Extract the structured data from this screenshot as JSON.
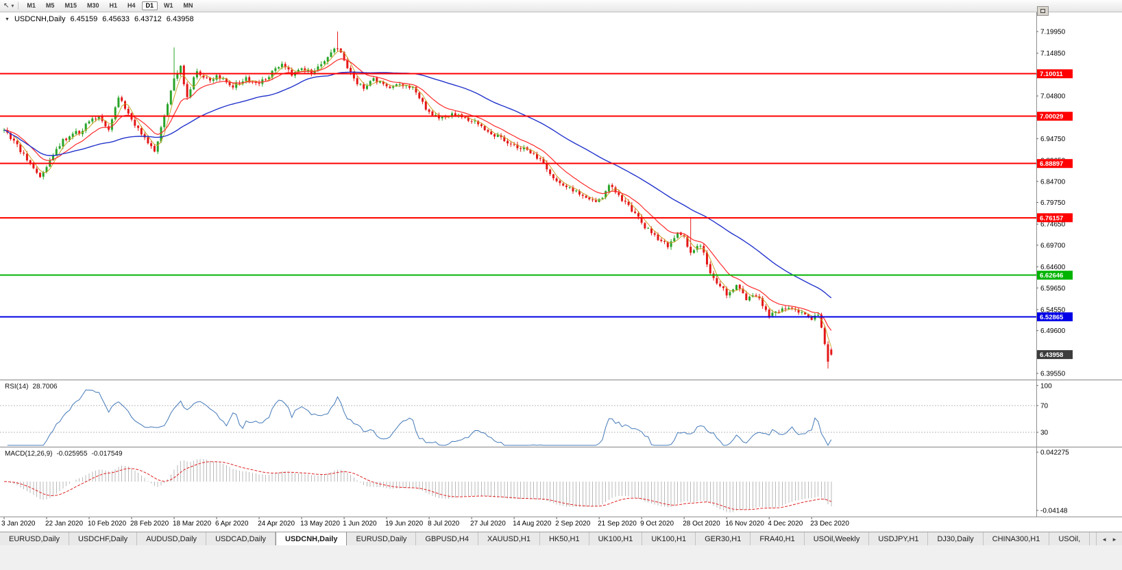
{
  "toolbar": {
    "pointer_icon": "↖",
    "dropdown_caret": "▾",
    "timeframes": [
      {
        "label": "M1",
        "active": false
      },
      {
        "label": "M5",
        "active": false
      },
      {
        "label": "M15",
        "active": false
      },
      {
        "label": "M30",
        "active": false
      },
      {
        "label": "H1",
        "active": false
      },
      {
        "label": "H4",
        "active": false
      },
      {
        "label": "D1",
        "active": true
      },
      {
        "label": "W1",
        "active": false
      },
      {
        "label": "MN",
        "active": false
      }
    ]
  },
  "chart_header": {
    "collapse_arrow": "▼",
    "symbol_period": "USDCNH,Daily",
    "open": "6.45159",
    "high": "6.45633",
    "low": "6.43712",
    "close": "6.43958"
  },
  "rsi_panel": {
    "name": "RSI(14)",
    "value": "28.7006",
    "line_color": "#4379b8"
  },
  "macd_panel": {
    "name": "MACD(12,26,9)",
    "macd_value": "-0.025955",
    "signal_value": "-0.017549",
    "scale_top": "0.042275",
    "scale_bottom": "-0.04148",
    "histogram_color": "#b8b8b8",
    "signal_color": "#e02020"
  },
  "tab_scroll": {
    "left": "◄",
    "right": "►"
  },
  "tabs": [
    {
      "label": "EURUSD,Daily",
      "active": false
    },
    {
      "label": "USDCHF,Daily",
      "active": false
    },
    {
      "label": "AUDUSD,Daily",
      "active": false
    },
    {
      "label": "USDCAD,Daily",
      "active": false
    },
    {
      "label": "USDCNH,Daily",
      "active": true
    },
    {
      "label": "EURUSD,Daily",
      "active": false
    },
    {
      "label": "GBPUSD,H4",
      "active": false
    },
    {
      "label": "XAUUSD,H1",
      "active": false
    },
    {
      "label": "HK50,H1",
      "active": false
    },
    {
      "label": "UK100,H1",
      "active": false
    },
    {
      "label": "UK100,H1",
      "active": false
    },
    {
      "label": "GER30,H1",
      "active": false
    },
    {
      "label": "FRA40,H1",
      "active": false
    },
    {
      "label": "USOil,Weekly",
      "active": false
    },
    {
      "label": "USDJPY,H1",
      "active": false
    },
    {
      "label": "DJ30,Daily",
      "active": false
    },
    {
      "label": "CHINA300,H1",
      "active": false
    },
    {
      "label": "USOil,",
      "active": false
    }
  ],
  "chart_data": {
    "type": "candlestick",
    "symbol": "USDCNH",
    "timeframe": "Daily",
    "current_ohlc": {
      "open": 6.45159,
      "high": 6.45633,
      "low": 6.43712,
      "close": 6.43958
    },
    "up_color": "#28a428",
    "down_color": "#e41616",
    "ma_fast_color": "#c9a227",
    "ma_medium_color": "#ff2a2a",
    "ma_slow_color": "#2233cc",
    "num_candles": 254,
    "visible_price_range": [
      6.3826,
      7.2092
    ],
    "price_path": [
      [
        0,
        6.965
      ],
      [
        4,
        6.932
      ],
      [
        8,
        6.886
      ],
      [
        11,
        6.857
      ],
      [
        13,
        6.876
      ],
      [
        16,
        6.928
      ],
      [
        20,
        6.955
      ],
      [
        23,
        6.964
      ],
      [
        26,
        6.985
      ],
      [
        29,
        7.0
      ],
      [
        32,
        6.972
      ],
      [
        35,
        7.044
      ],
      [
        39,
        6.992
      ],
      [
        43,
        6.946
      ],
      [
        46,
        6.92
      ],
      [
        49,
        6.998
      ],
      [
        52,
        7.088
      ],
      [
        54,
        7.114
      ],
      [
        56,
        7.046
      ],
      [
        59,
        7.108
      ],
      [
        62,
        7.085
      ],
      [
        65,
        7.094
      ],
      [
        70,
        7.07
      ],
      [
        74,
        7.088
      ],
      [
        78,
        7.076
      ],
      [
        82,
        7.104
      ],
      [
        85,
        7.128
      ],
      [
        88,
        7.1
      ],
      [
        91,
        7.114
      ],
      [
        94,
        7.1
      ],
      [
        97,
        7.124
      ],
      [
        100,
        7.152
      ],
      [
        102,
        7.164
      ],
      [
        104,
        7.13
      ],
      [
        107,
        7.086
      ],
      [
        110,
        7.07
      ],
      [
        113,
        7.088
      ],
      [
        117,
        7.07
      ],
      [
        121,
        7.077
      ],
      [
        125,
        7.064
      ],
      [
        128,
        7.03
      ],
      [
        130,
        7.006
      ],
      [
        134,
        6.996
      ],
      [
        138,
        7.004
      ],
      [
        143,
        6.99
      ],
      [
        147,
        6.972
      ],
      [
        151,
        6.952
      ],
      [
        156,
        6.93
      ],
      [
        160,
        6.918
      ],
      [
        164,
        6.9
      ],
      [
        169,
        6.846
      ],
      [
        173,
        6.83
      ],
      [
        177,
        6.812
      ],
      [
        182,
        6.8
      ],
      [
        185,
        6.838
      ],
      [
        188,
        6.812
      ],
      [
        192,
        6.78
      ],
      [
        195,
        6.748
      ],
      [
        199,
        6.72
      ],
      [
        203,
        6.696
      ],
      [
        206,
        6.728
      ],
      [
        208,
        6.714
      ],
      [
        210,
        6.682
      ],
      [
        213,
        6.7
      ],
      [
        216,
        6.632
      ],
      [
        219,
        6.6
      ],
      [
        221,
        6.582
      ],
      [
        224,
        6.6
      ],
      [
        227,
        6.572
      ],
      [
        230,
        6.582
      ],
      [
        234,
        6.532
      ],
      [
        237,
        6.541
      ],
      [
        240,
        6.552
      ],
      [
        243,
        6.54
      ],
      [
        247,
        6.524
      ],
      [
        249,
        6.536
      ],
      [
        250,
        6.5
      ],
      [
        251,
        6.462
      ],
      [
        252,
        6.428
      ],
      [
        253,
        6.4396
      ]
    ],
    "wick_spikes": [
      {
        "index": 52,
        "high": 7.162
      },
      {
        "index": 102,
        "high": 7.1995
      },
      {
        "index": 210,
        "high": 6.763
      },
      {
        "index": 252,
        "low": 6.407
      }
    ],
    "horizontal_levels": [
      {
        "price": 7.10011,
        "label": "7.10011",
        "color": "#ff0000"
      },
      {
        "price": 7.00029,
        "label": "7.00029",
        "color": "#ff0000"
      },
      {
        "price": 6.88897,
        "label": "6.88897",
        "color": "#ff0000"
      },
      {
        "price": 6.76157,
        "label": "6.76157",
        "color": "#ff0000"
      },
      {
        "price": 6.62646,
        "label": "6.62646",
        "color": "#00b400"
      },
      {
        "price": 6.52865,
        "label": "6.52865",
        "color": "#0000e6"
      }
    ],
    "current_price": {
      "price": 6.43958,
      "label": "6.43958",
      "tag_color": "#3c3c3c"
    },
    "price_axis_labels": [
      "7.19950",
      "7.14850",
      "7.09900",
      "7.04800",
      "6.99750",
      "6.94750",
      "6.89650",
      "6.84700",
      "6.79750",
      "6.74650",
      "6.69700",
      "6.64600",
      "6.59650",
      "6.54550",
      "6.49600",
      "6.39550"
    ],
    "x_ticks": {
      "indices": [
        0,
        13,
        26,
        39,
        52,
        65,
        78,
        91,
        104,
        117,
        130,
        143,
        156,
        169,
        182,
        195,
        208,
        221,
        234,
        247
      ],
      "labels": [
        "3 Jan 2020",
        "22 Jan 2020",
        "10 Feb 2020",
        "28 Feb 2020",
        "18 Mar 2020",
        "6 Apr 2020",
        "24 Apr 2020",
        "13 May 2020",
        "1 Jun 2020",
        "19 Jun 2020",
        "8 Jul 2020",
        "27 Jul 2020",
        "14 Aug 2020",
        "2 Sep 2020",
        "21 Sep 2020",
        "9 Oct 2020",
        "28 Oct 2020",
        "16 Nov 2020",
        "4 Dec 2020",
        "23 Dec 2020"
      ]
    },
    "indicators": {
      "rsi": {
        "period": 14,
        "current": 28.7006,
        "guide_levels": [
          70,
          30
        ],
        "scale_labels": [
          100,
          70,
          30
        ]
      },
      "macd": {
        "fast": 12,
        "slow": 26,
        "signal": 9,
        "current_macd": -0.025955,
        "current_signal": -0.017549,
        "scale_max": 0.042275,
        "scale_min": -0.04148
      }
    }
  }
}
